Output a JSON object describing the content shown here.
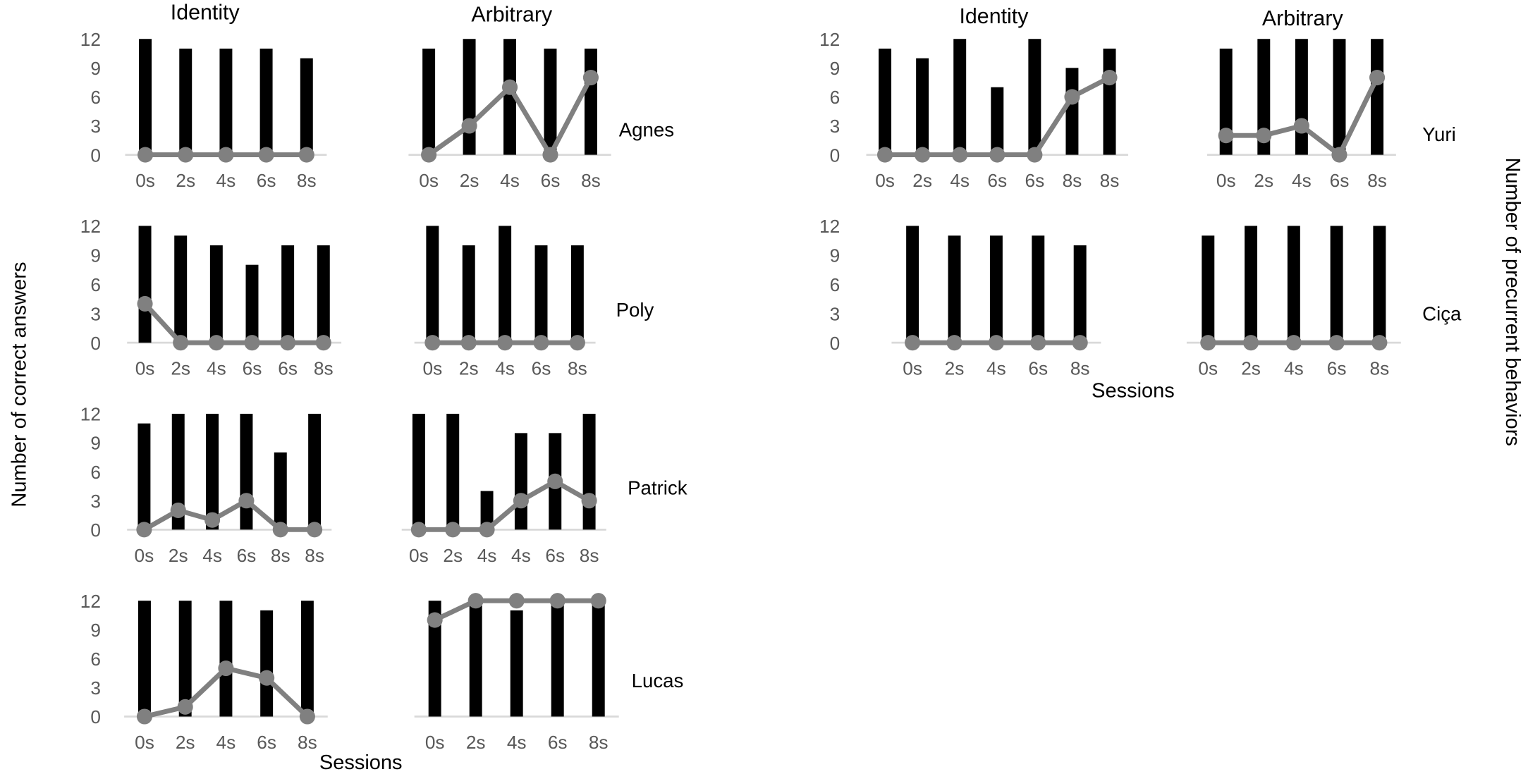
{
  "figure": {
    "column_titles": [
      "Identity",
      "Arbitrary",
      "Identity",
      "Arbitrary"
    ],
    "y_label_left": "Number of correct answers",
    "y_label_right": "Number of precurrent behaviors",
    "x_label": "Sessions",
    "x_label_right": "Sessions",
    "colors": {
      "bars": "#000000",
      "line": "#808080",
      "axis": "#d9d9d9",
      "ticks": "#595959"
    }
  },
  "chart_data": [
    {
      "type": "bar+line",
      "participant": "Agnes",
      "condition": "Identity",
      "categories": [
        "0s",
        "2s",
        "4s",
        "6s",
        "8s"
      ],
      "series": [
        {
          "name": "Correct answers",
          "type": "bar",
          "values": [
            12,
            11,
            11,
            11,
            10
          ]
        },
        {
          "name": "Precurrent behaviors",
          "type": "line",
          "values": [
            0,
            0,
            0,
            0,
            0
          ]
        }
      ],
      "yticks": [
        "0",
        "3",
        "6",
        "9",
        "12"
      ],
      "ylim": [
        0,
        12
      ]
    },
    {
      "type": "bar+line",
      "participant": "Agnes",
      "condition": "Arbitrary",
      "categories": [
        "0s",
        "2s",
        "4s",
        "6s",
        "8s"
      ],
      "series": [
        {
          "name": "Correct answers",
          "type": "bar",
          "values": [
            11,
            12,
            12,
            11,
            11
          ]
        },
        {
          "name": "Precurrent behaviors",
          "type": "line",
          "values": [
            0,
            3,
            7,
            0,
            8
          ]
        }
      ],
      "ylim": [
        0,
        12
      ]
    },
    {
      "type": "bar+line",
      "participant": "Poly",
      "condition": "Identity",
      "categories": [
        "0s",
        "2s",
        "4s",
        "6s",
        "6s",
        "8s"
      ],
      "series": [
        {
          "name": "Correct answers",
          "type": "bar",
          "values": [
            12,
            11,
            10,
            8,
            10,
            10
          ]
        },
        {
          "name": "Precurrent behaviors",
          "type": "line",
          "values": [
            4,
            0,
            0,
            0,
            0,
            0
          ]
        }
      ],
      "yticks": [
        "0",
        "3",
        "6",
        "9",
        "12"
      ],
      "ylim": [
        0,
        12
      ]
    },
    {
      "type": "bar+line",
      "participant": "Poly",
      "condition": "Arbitrary",
      "categories": [
        "0s",
        "2s",
        "4s",
        "6s",
        "8s"
      ],
      "series": [
        {
          "name": "Correct answers",
          "type": "bar",
          "values": [
            12,
            10,
            12,
            10,
            10
          ]
        },
        {
          "name": "Precurrent behaviors",
          "type": "line",
          "values": [
            0,
            0,
            0,
            0,
            0
          ]
        }
      ],
      "ylim": [
        0,
        12
      ]
    },
    {
      "type": "bar+line",
      "participant": "Patrick",
      "condition": "Identity",
      "categories": [
        "0s",
        "2s",
        "4s",
        "6s",
        "8s",
        "8s"
      ],
      "series": [
        {
          "name": "Correct answers",
          "type": "bar",
          "values": [
            11,
            12,
            12,
            12,
            8,
            12
          ]
        },
        {
          "name": "Precurrent behaviors",
          "type": "line",
          "values": [
            0,
            2,
            1,
            3,
            0,
            0
          ]
        }
      ],
      "yticks": [
        "0",
        "3",
        "6",
        "9",
        "12"
      ],
      "ylim": [
        0,
        12
      ]
    },
    {
      "type": "bar+line",
      "participant": "Patrick",
      "condition": "Arbitrary",
      "categories": [
        "0s",
        "2s",
        "4s",
        "4s",
        "6s",
        "8s"
      ],
      "series": [
        {
          "name": "Correct answers",
          "type": "bar",
          "values": [
            12,
            12,
            4,
            10,
            10,
            12
          ]
        },
        {
          "name": "Precurrent behaviors",
          "type": "line",
          "values": [
            0,
            0,
            0,
            3,
            5,
            3
          ]
        }
      ],
      "ylim": [
        0,
        12
      ]
    },
    {
      "type": "bar+line",
      "participant": "Lucas",
      "condition": "Identity",
      "categories": [
        "0s",
        "2s",
        "4s",
        "6s",
        "8s"
      ],
      "series": [
        {
          "name": "Correct answers",
          "type": "bar",
          "values": [
            12,
            12,
            12,
            11,
            12
          ]
        },
        {
          "name": "Precurrent behaviors",
          "type": "line",
          "values": [
            0,
            1,
            5,
            4,
            0
          ]
        }
      ],
      "yticks": [
        "0",
        "3",
        "6",
        "9",
        "12"
      ],
      "ylim": [
        0,
        12
      ]
    },
    {
      "type": "bar+line",
      "participant": "Lucas",
      "condition": "Arbitrary",
      "categories": [
        "0s",
        "2s",
        "4s",
        "6s",
        "8s"
      ],
      "series": [
        {
          "name": "Correct answers",
          "type": "bar",
          "values": [
            12,
            12,
            11,
            12,
            12
          ]
        },
        {
          "name": "Precurrent behaviors",
          "type": "line",
          "values": [
            10,
            12,
            12,
            12,
            12
          ]
        }
      ],
      "ylim": [
        0,
        12
      ]
    },
    {
      "type": "bar+line",
      "participant": "Yuri",
      "condition": "Identity",
      "categories": [
        "0s",
        "2s",
        "4s",
        "6s",
        "6s",
        "8s",
        "8s"
      ],
      "series": [
        {
          "name": "Correct answers",
          "type": "bar",
          "values": [
            11,
            10,
            12,
            7,
            12,
            9,
            11
          ]
        },
        {
          "name": "Precurrent behaviors",
          "type": "line",
          "values": [
            0,
            0,
            0,
            0,
            0,
            6,
            8
          ]
        }
      ],
      "yticks": [
        "0",
        "3",
        "6",
        "9",
        "12"
      ],
      "ylim": [
        0,
        12
      ]
    },
    {
      "type": "bar+line",
      "participant": "Yuri",
      "condition": "Arbitrary",
      "categories": [
        "0s",
        "2s",
        "4s",
        "6s",
        "8s"
      ],
      "series": [
        {
          "name": "Correct answers",
          "type": "bar",
          "values": [
            11,
            12,
            12,
            12,
            12
          ]
        },
        {
          "name": "Precurrent behaviors",
          "type": "line",
          "values": [
            2,
            2,
            3,
            0,
            8
          ]
        }
      ],
      "ylim": [
        0,
        12
      ]
    },
    {
      "type": "bar+line",
      "participant": "Ciça",
      "condition": "Identity",
      "categories": [
        "0s",
        "2s",
        "4s",
        "6s",
        "8s"
      ],
      "series": [
        {
          "name": "Correct answers",
          "type": "bar",
          "values": [
            12,
            11,
            11,
            11,
            10
          ]
        },
        {
          "name": "Precurrent behaviors",
          "type": "line",
          "values": [
            0,
            0,
            0,
            0,
            0
          ]
        }
      ],
      "yticks": [
        "0",
        "3",
        "6",
        "9",
        "12"
      ],
      "ylim": [
        0,
        12
      ]
    },
    {
      "type": "bar+line",
      "participant": "Ciça",
      "condition": "Arbitrary",
      "categories": [
        "0s",
        "2s",
        "4s",
        "6s",
        "8s"
      ],
      "series": [
        {
          "name": "Correct answers",
          "type": "bar",
          "values": [
            11,
            12,
            12,
            12,
            12
          ]
        },
        {
          "name": "Precurrent behaviors",
          "type": "line",
          "values": [
            0,
            0,
            0,
            0,
            0
          ]
        }
      ],
      "ylim": [
        0,
        12
      ]
    }
  ]
}
